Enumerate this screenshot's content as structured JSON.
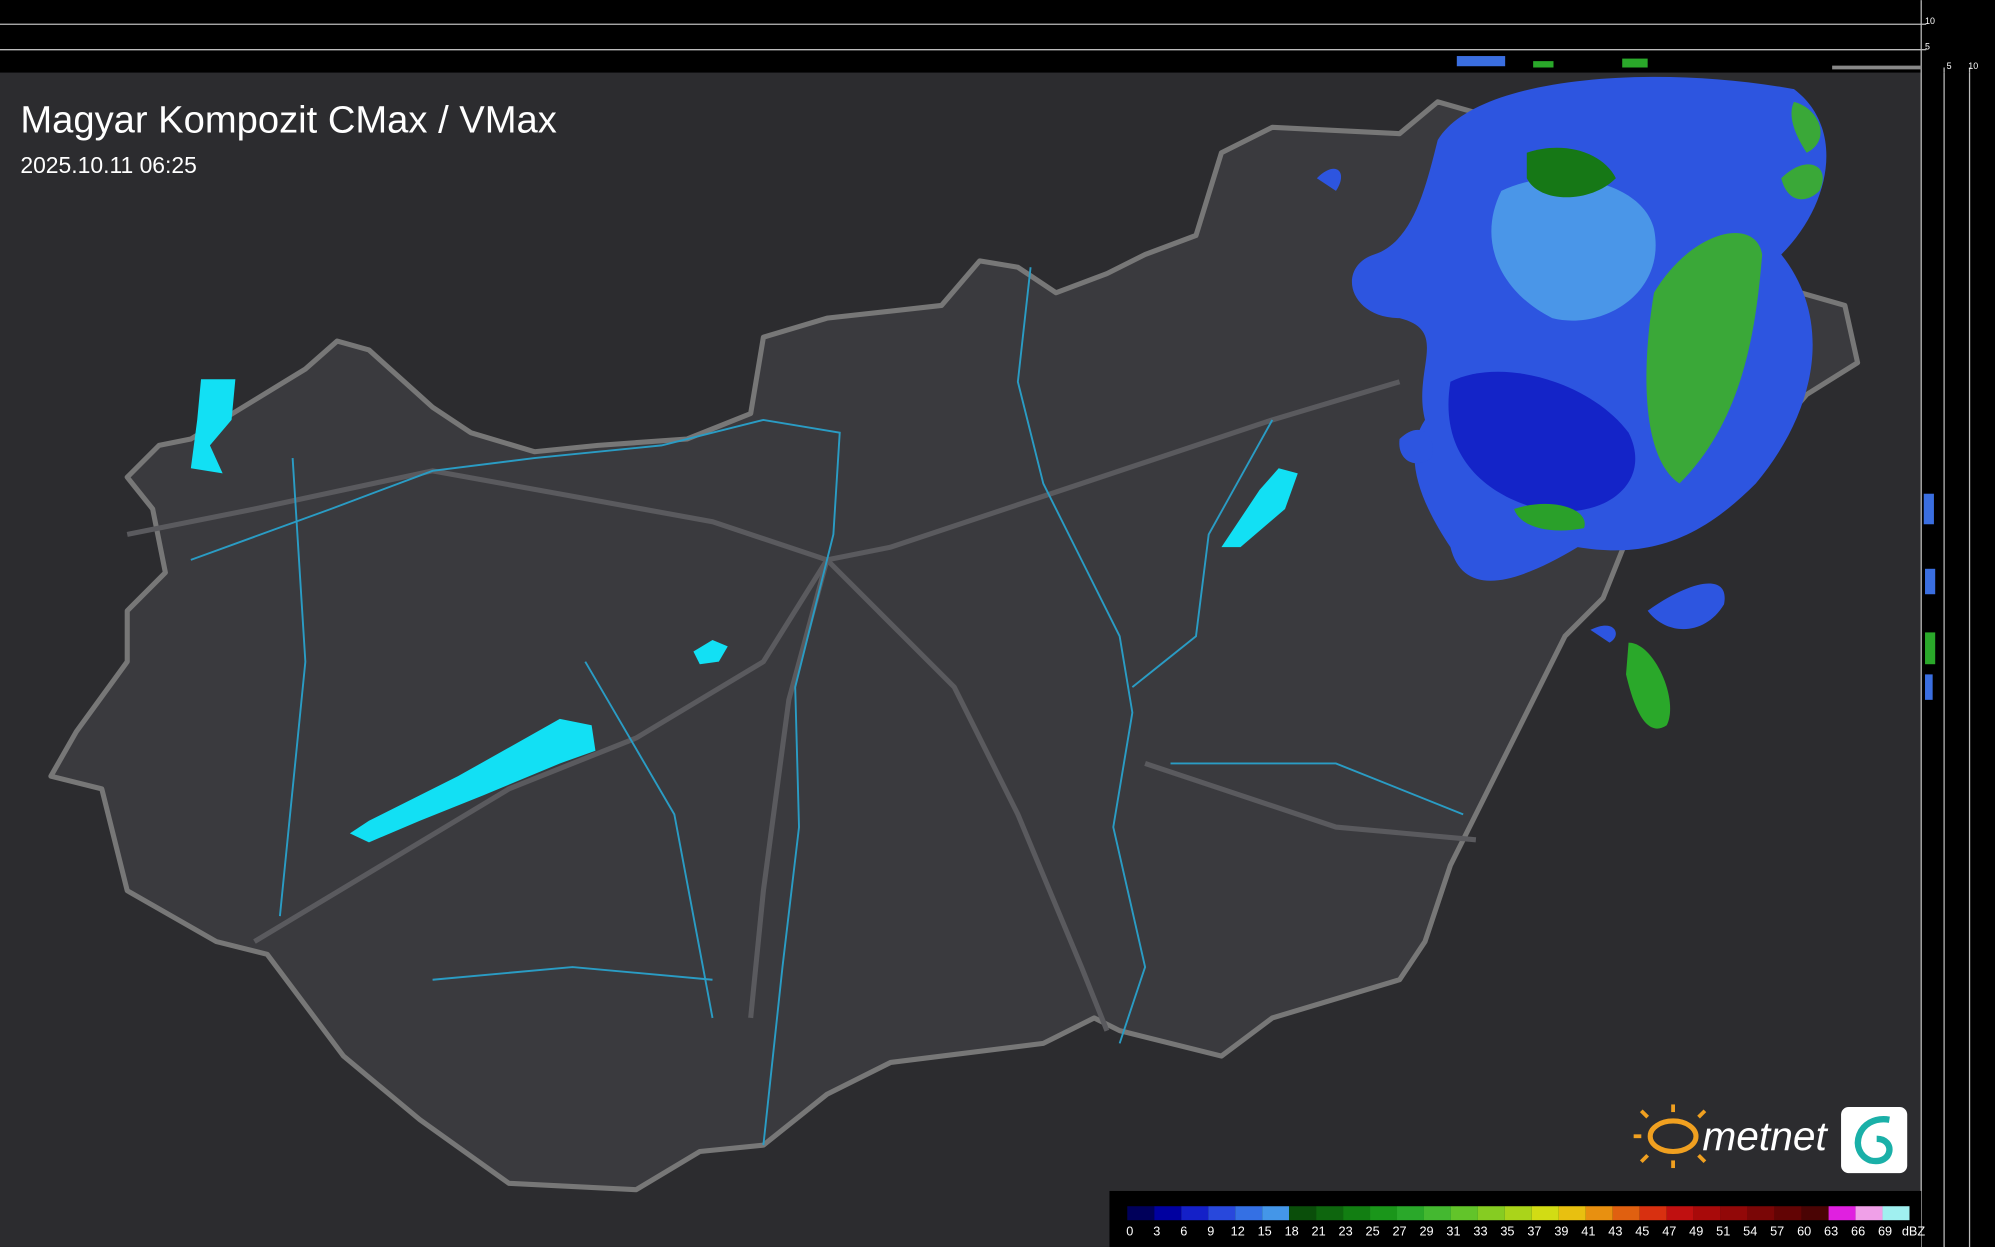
{
  "header": {
    "title": "Magyar Kompozit CMax / VMax",
    "timestamp": "2025.10.11 06:25"
  },
  "legend": {
    "stops": [
      0,
      3,
      6,
      9,
      12,
      15,
      18,
      21,
      23,
      25,
      27,
      29,
      31,
      33,
      35,
      37,
      39,
      41,
      43,
      45,
      47,
      49,
      51,
      54,
      57,
      60,
      63,
      66,
      69
    ],
    "unit": "dBZ",
    "colors": [
      "#00005a",
      "#0000a0",
      "#1420c8",
      "#2848dc",
      "#3470e4",
      "#4496e8",
      "#0a4e0a",
      "#0e660e",
      "#127e12",
      "#1a961a",
      "#2aa82a",
      "#44b830",
      "#62c42a",
      "#86cc22",
      "#aad41a",
      "#d2dc14",
      "#e8c010",
      "#e89010",
      "#e06010",
      "#d83010",
      "#c01010",
      "#a80a0a",
      "#920808",
      "#7a0606",
      "#620404",
      "#4a0404",
      "#e020e0",
      "#f0a0e8",
      "#a0f0f0"
    ]
  },
  "logo": {
    "text": "metnet"
  },
  "side_scale": {
    "top_ticks": [
      10,
      5
    ],
    "bottom_ticks": [
      5,
      10
    ]
  }
}
